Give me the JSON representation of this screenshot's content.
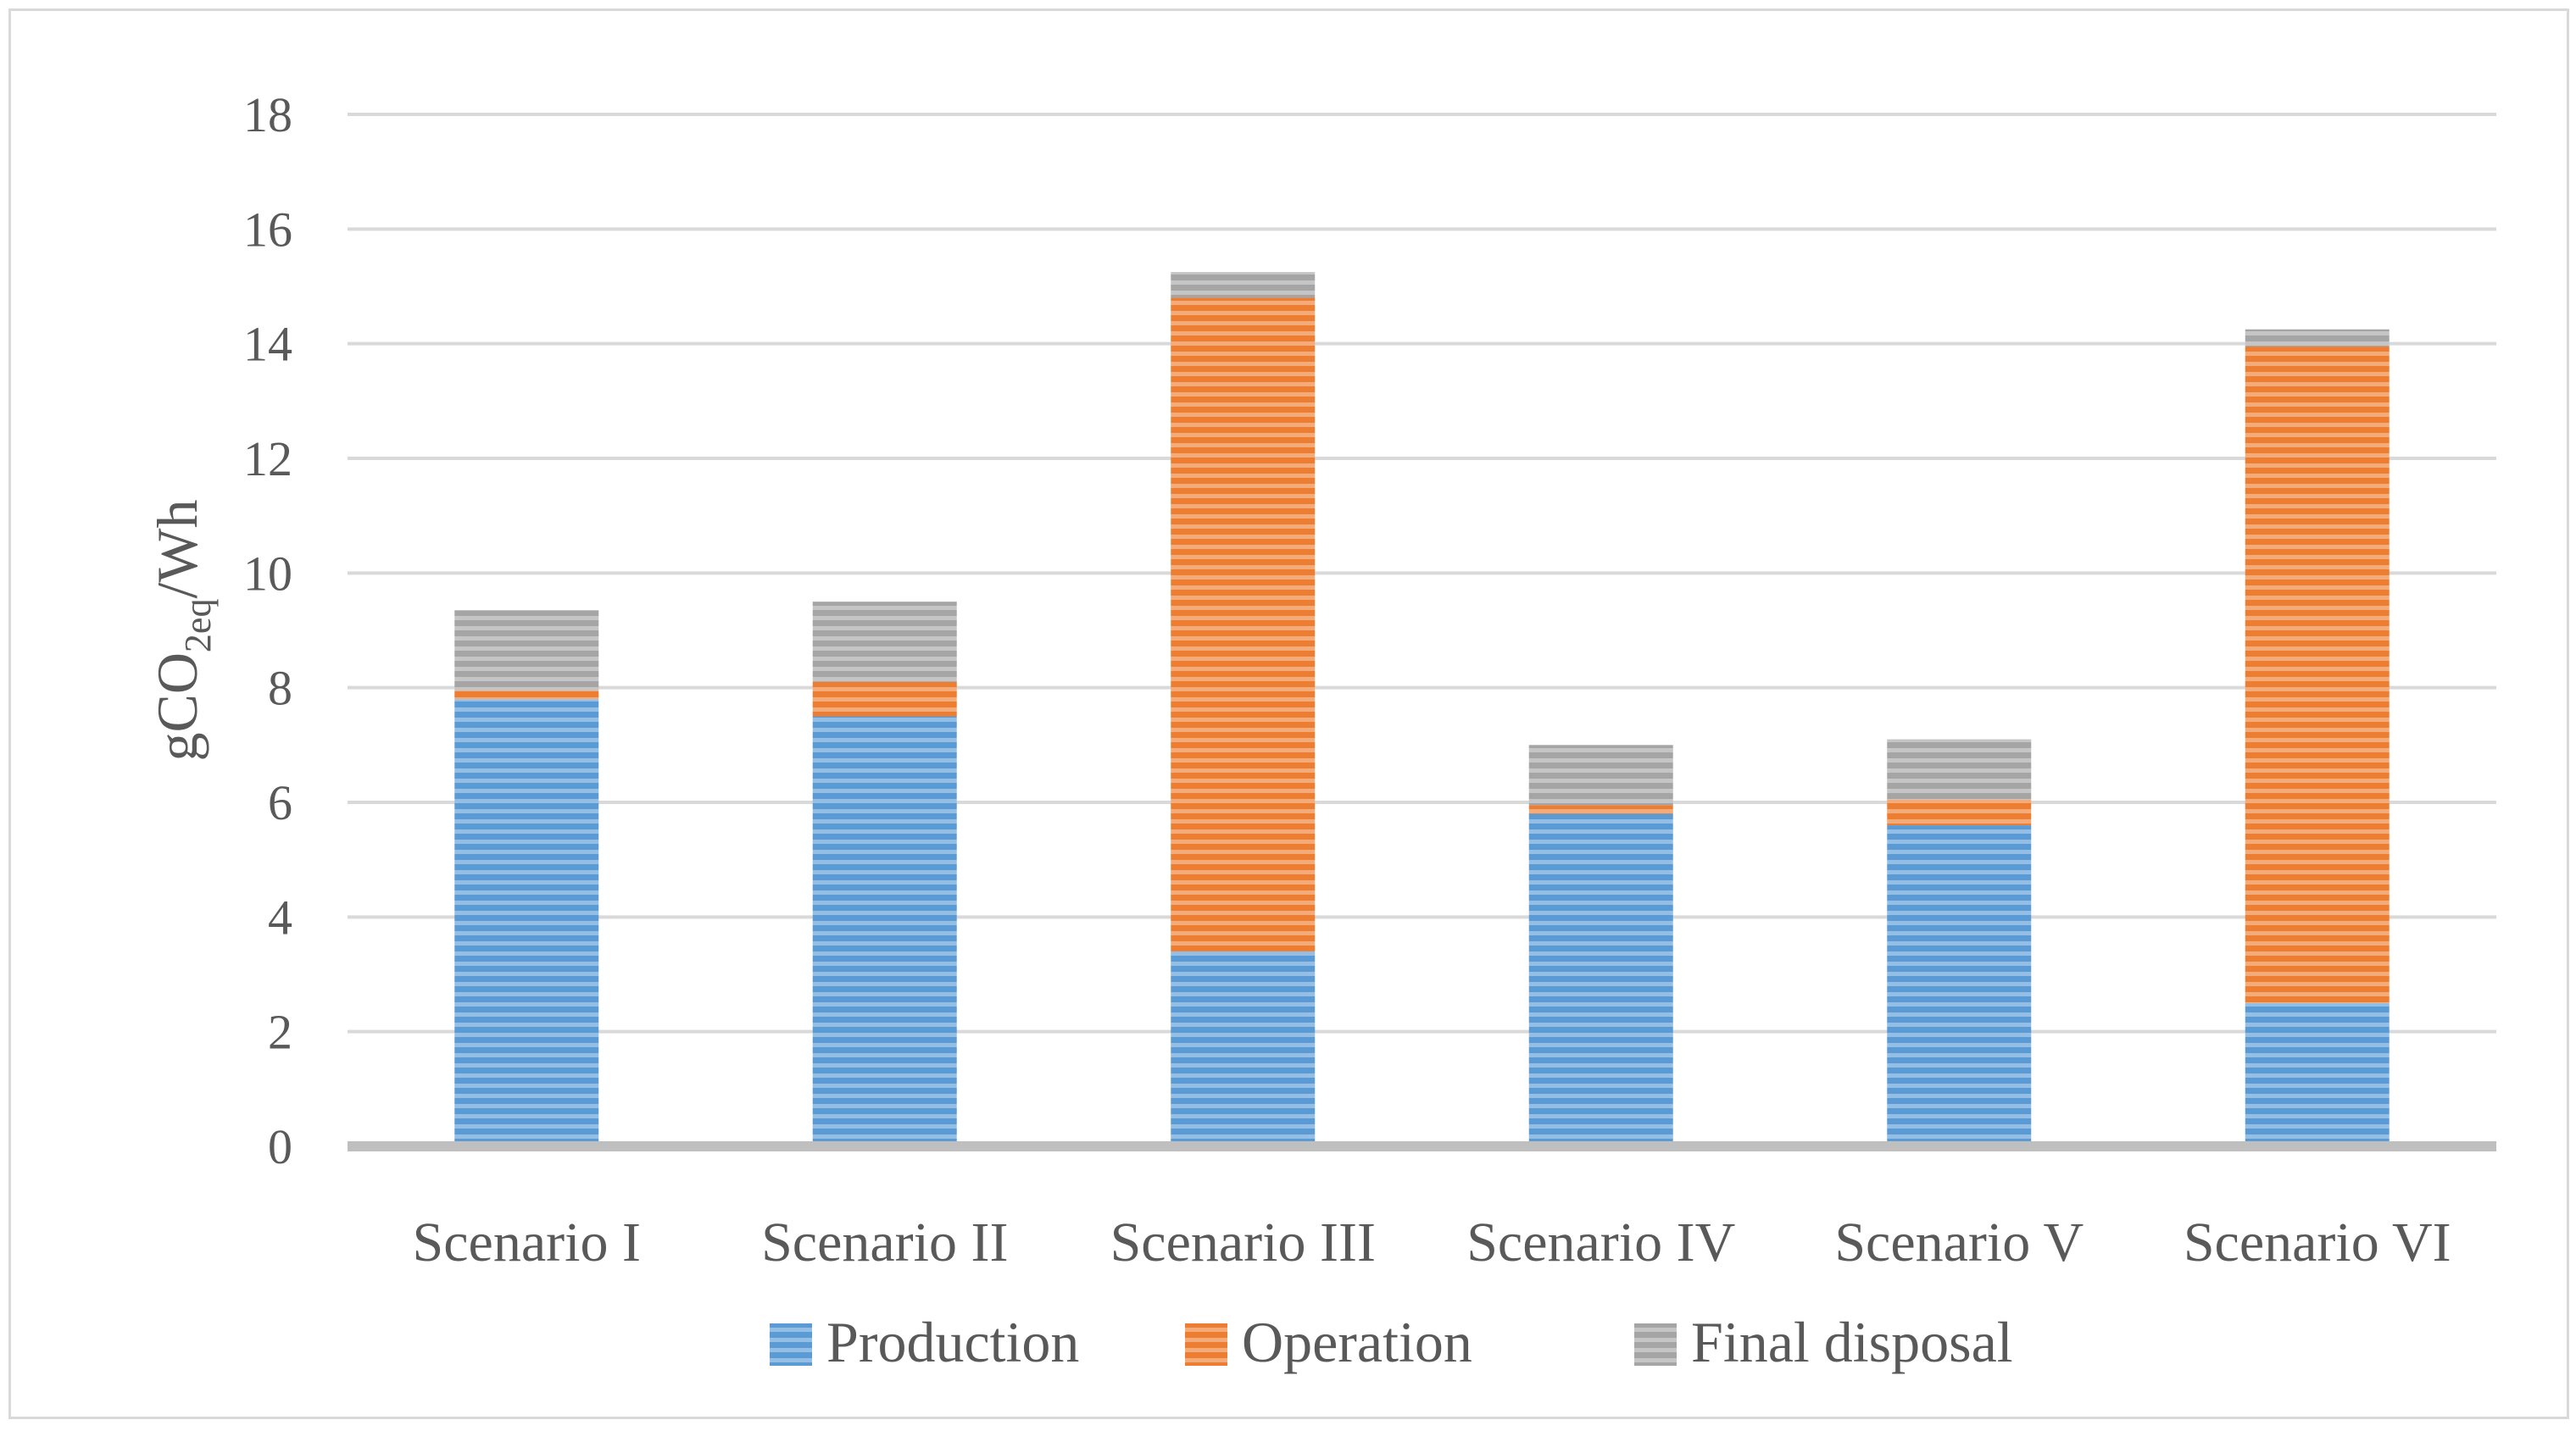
{
  "chart_data": {
    "type": "bar",
    "stacked": true,
    "title": "",
    "xlabel": "",
    "ylabel": {
      "prefix": "gCO",
      "subscript": "2eq",
      "suffix": "/Wh"
    },
    "ylim": [
      0,
      18
    ],
    "yticks": [
      "0",
      "2",
      "4",
      "6",
      "8",
      "10",
      "12",
      "14",
      "16",
      "18"
    ],
    "grid": true,
    "legend_position": "bottom",
    "categories": [
      "Scenario I",
      "Scenario II",
      "Scenario III",
      "Scenario IV",
      "Scenario V",
      "Scenario VI"
    ],
    "series": [
      {
        "name": "Production",
        "color": "#5b9bd5",
        "values": [
          7.8,
          7.5,
          3.4,
          5.8,
          5.6,
          2.5
        ]
      },
      {
        "name": "Operation",
        "color": "#ed7d31",
        "values": [
          0.15,
          0.6,
          11.4,
          0.15,
          0.45,
          11.45
        ]
      },
      {
        "name": "Final disposal",
        "color": "#a5a5a5",
        "values": [
          1.4,
          1.4,
          0.45,
          1.05,
          1.05,
          0.3
        ]
      }
    ]
  }
}
